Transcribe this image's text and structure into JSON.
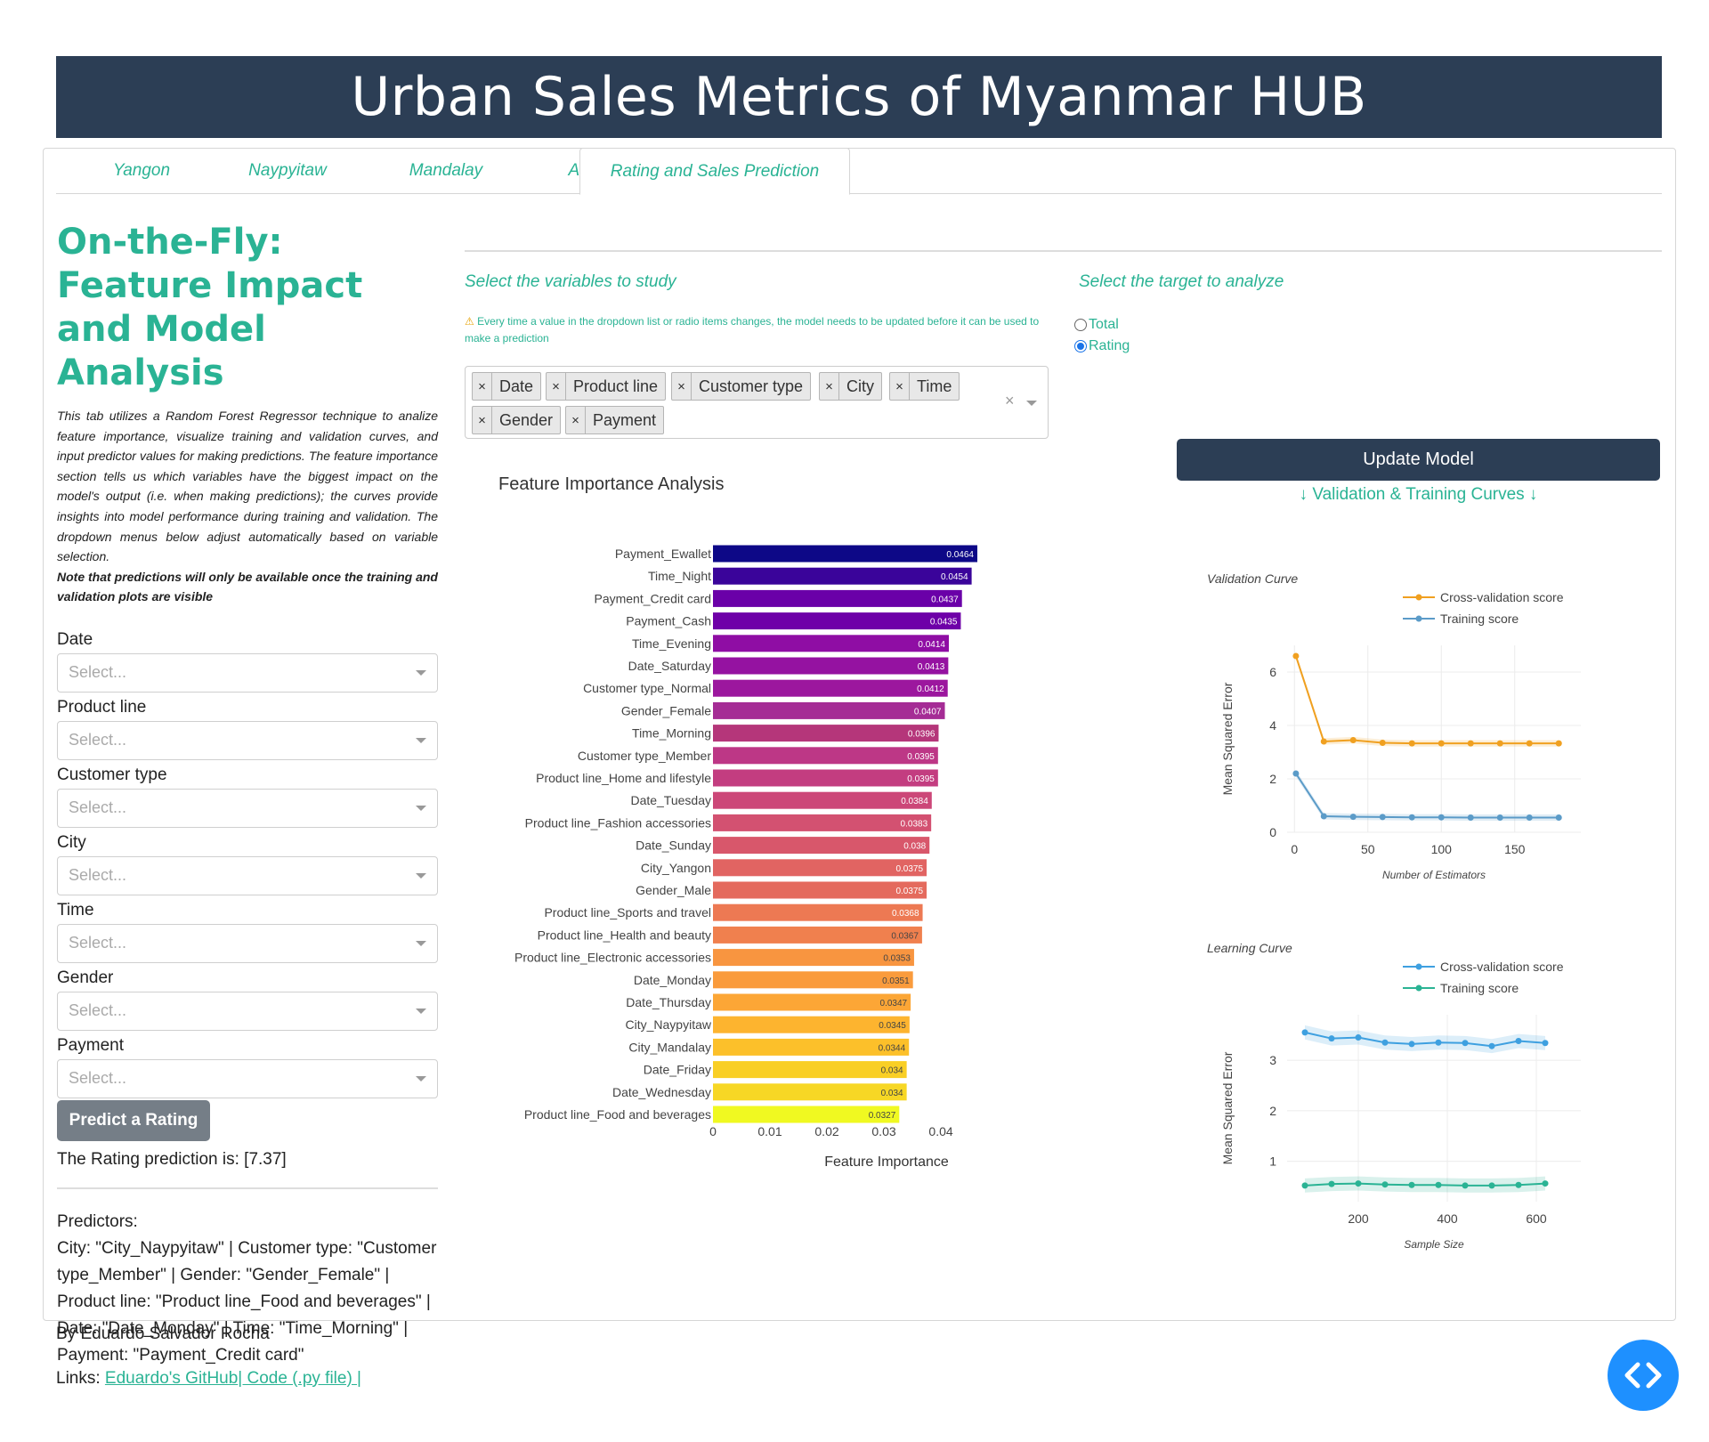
{
  "header": {
    "title": "Urban Sales Metrics of Myanmar HUB"
  },
  "tabs": [
    {
      "label": "Yangon"
    },
    {
      "label": "Naypyitaw"
    },
    {
      "label": "Mandalay"
    },
    {
      "label": "All"
    },
    {
      "label": "Rating and Sales Prediction",
      "active": true
    }
  ],
  "left": {
    "heading": "On-the-Fly: Feature Impact and Model Analysis",
    "description": "This tab utilizes a Random Forest Regressor technique to analize feature importance, visualize training and validation curves, and input predictor values for making predictions. The feature importance section tells us which variables have the biggest impact on the model's output (i.e. when making predictions); the curves provide insights into model performance during training and validation. The dropdown menus below adjust automatically based on variable selection.",
    "note": "Note that predictions will only be available once the training and validation plots are visible",
    "fields": [
      {
        "label": "Date",
        "placeholder": "Select..."
      },
      {
        "label": "Product line",
        "placeholder": "Select..."
      },
      {
        "label": "Customer type",
        "placeholder": "Select..."
      },
      {
        "label": "City",
        "placeholder": "Select..."
      },
      {
        "label": "Time",
        "placeholder": "Select..."
      },
      {
        "label": "Gender",
        "placeholder": "Select..."
      },
      {
        "label": "Payment",
        "placeholder": "Select..."
      }
    ],
    "predict_button": "Predict a Rating",
    "prediction_text": "The Rating prediction is: [7.37]",
    "predictors_title": "Predictors:",
    "predictors_text": "City: \"City_Naypyitaw\" | Customer type: \"Customer type_Member\" | Gender: \"Gender_Female\" | Product line: \"Product line_Food and beverages\" | Date: \"Date_Monday\" | Time: \"Time_Morning\" | Payment: \"Payment_Credit card\""
  },
  "variables": {
    "label": "Select the variables to study",
    "warning_icon": "⚠",
    "warning": "Every time a value in the dropdown list or radio items changes, the model needs to be updated before it can be used to make a prediction",
    "chips": [
      "Date",
      "Product line",
      "Customer type",
      "City",
      "Time",
      "Gender",
      "Payment"
    ],
    "clear": "×"
  },
  "target": {
    "label": "Select the target to analyze",
    "options": [
      "Total",
      "Rating"
    ],
    "selected": "Rating"
  },
  "update_button": "Update Model",
  "curves_label": "↓ Validation & Training Curves ↓",
  "footer": {
    "by": "By Eduardo Salvador Rocha",
    "links_label": "Links: ",
    "link1": "Eduardo's GitHub",
    "link2": "| Code (.py file) |"
  },
  "colors": {
    "accent": "#2ab394",
    "header_bg": "#2c3e55",
    "fab": "#1e90ff"
  },
  "chart_data": [
    {
      "type": "bar",
      "orientation": "horizontal",
      "title": "Feature Importance Analysis",
      "xlabel": "Feature Importance",
      "ylabel": "",
      "xlim": [
        0,
        0.0464
      ],
      "xticks": [
        0,
        0.01,
        0.02,
        0.03,
        0.04
      ],
      "xtick_labels": [
        "0",
        "0.01",
        "0.02",
        "0.03",
        "0.04"
      ],
      "categories": [
        "Payment_Ewallet",
        "Time_Night",
        "Payment_Credit card",
        "Payment_Cash",
        "Time_Evening",
        "Date_Saturday",
        "Customer type_Normal",
        "Gender_Female",
        "Time_Morning",
        "Customer type_Member",
        "Product line_Home and lifestyle",
        "Date_Tuesday",
        "Product line_Fashion accessories",
        "Date_Sunday",
        "City_Yangon",
        "Gender_Male",
        "Product line_Sports and travel",
        "Product line_Health and beauty",
        "Product line_Electronic accessories",
        "Date_Monday",
        "Date_Thursday",
        "City_Naypyitaw",
        "City_Mandalay",
        "Date_Friday",
        "Date_Wednesday",
        "Product line_Food and beverages"
      ],
      "values": [
        0.0464,
        0.0454,
        0.0437,
        0.0435,
        0.0414,
        0.0413,
        0.0412,
        0.0407,
        0.0396,
        0.0395,
        0.0395,
        0.0384,
        0.0383,
        0.038,
        0.0375,
        0.0375,
        0.0368,
        0.0367,
        0.0353,
        0.0351,
        0.0347,
        0.0345,
        0.0344,
        0.034,
        0.034,
        0.0327
      ],
      "labels": [
        "0.0464",
        "0.0454",
        "0.0437",
        "0.0435",
        "0.0414",
        "0.0413",
        "0.0412",
        "0.0407",
        "0.0396",
        "0.0395",
        "0.0395",
        "0.0384",
        "0.0383",
        "0.038",
        "0.0375",
        "0.0375",
        "0.0368",
        "0.0367",
        "0.0353",
        "0.0351",
        "0.0347",
        "0.0345",
        "0.0344",
        "0.034",
        "0.034",
        "0.0327"
      ],
      "colors": [
        "#0d0887",
        "#3a049a",
        "#6a00a8",
        "#6e00a8",
        "#8f0da4",
        "#9512a1",
        "#9c179e",
        "#a52c95",
        "#b5367a",
        "#bd3786",
        "#c33d80",
        "#cc4778",
        "#d35171",
        "#d8576b",
        "#e16462",
        "#e46a5d",
        "#ed7953",
        "#f0804e",
        "#f89540",
        "#fa9b3c",
        "#fca636",
        "#fdb42f",
        "#fcc02a",
        "#f9cf25",
        "#f7d725",
        "#f0f921"
      ]
    },
    {
      "type": "line",
      "title": "Validation Curve",
      "xlabel": "Number of Estimators",
      "ylabel": "Mean Squared Error",
      "xlim": [
        -5,
        195
      ],
      "ylim": [
        0,
        7
      ],
      "xticks": [
        0,
        50,
        100,
        150
      ],
      "yticks": [
        0,
        2,
        4,
        6
      ],
      "x": [
        1,
        20,
        40,
        60,
        80,
        100,
        120,
        140,
        160,
        180
      ],
      "series": [
        {
          "name": "Cross-validation score",
          "color": "#f0a020",
          "values": [
            6.6,
            3.4,
            3.45,
            3.35,
            3.33,
            3.33,
            3.33,
            3.33,
            3.33,
            3.33
          ]
        },
        {
          "name": "Training score",
          "color": "#5b9bc8",
          "values": [
            2.2,
            0.6,
            0.58,
            0.57,
            0.56,
            0.56,
            0.55,
            0.55,
            0.55,
            0.55
          ]
        }
      ]
    },
    {
      "type": "line",
      "title": "Learning Curve",
      "xlabel": "Sample Size",
      "ylabel": "Mean Squared Error",
      "xlim": [
        40,
        700
      ],
      "ylim": [
        0.2,
        3.9
      ],
      "xticks": [
        200,
        400,
        600
      ],
      "yticks": [
        1,
        2,
        3
      ],
      "x": [
        80,
        140,
        200,
        260,
        320,
        380,
        440,
        500,
        560,
        620
      ],
      "series": [
        {
          "name": "Cross-validation score",
          "color": "#3ea0e0",
          "values": [
            3.55,
            3.43,
            3.45,
            3.35,
            3.32,
            3.35,
            3.34,
            3.28,
            3.38,
            3.34
          ]
        },
        {
          "name": "Training score",
          "color": "#2ab394",
          "values": [
            0.52,
            0.55,
            0.56,
            0.54,
            0.53,
            0.53,
            0.52,
            0.52,
            0.53,
            0.56
          ]
        }
      ]
    }
  ]
}
